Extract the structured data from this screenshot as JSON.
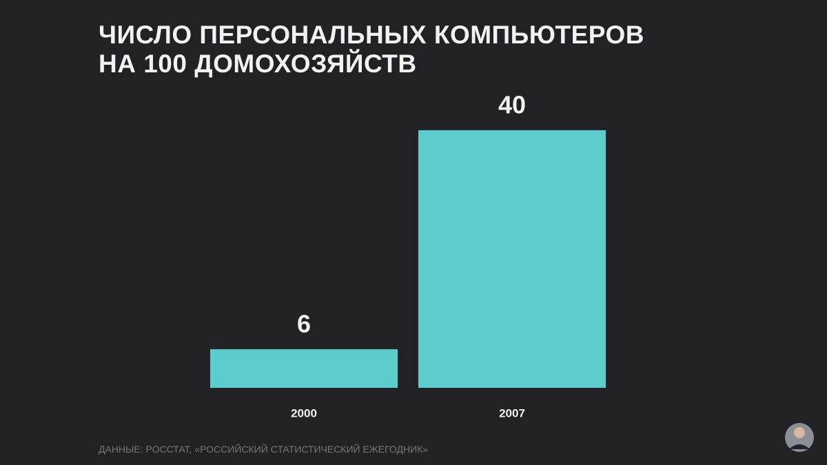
{
  "chart_data": {
    "type": "bar",
    "title": "ЧИСЛО ПЕРСОНАЛЬНЫХ КОМПЬЮТЕРОВ НА 100 ДОМОХОЗЯЙСТВ",
    "categories": [
      "2000",
      "2007"
    ],
    "values": [
      6,
      40
    ],
    "color": "#5ccccc",
    "source": "ДАННЫЕ: РОССТАТ, «РОССИЙСКИЙ СТАТИСТИЧЕСКИЙ ЕЖЕГОДНИК»"
  }
}
